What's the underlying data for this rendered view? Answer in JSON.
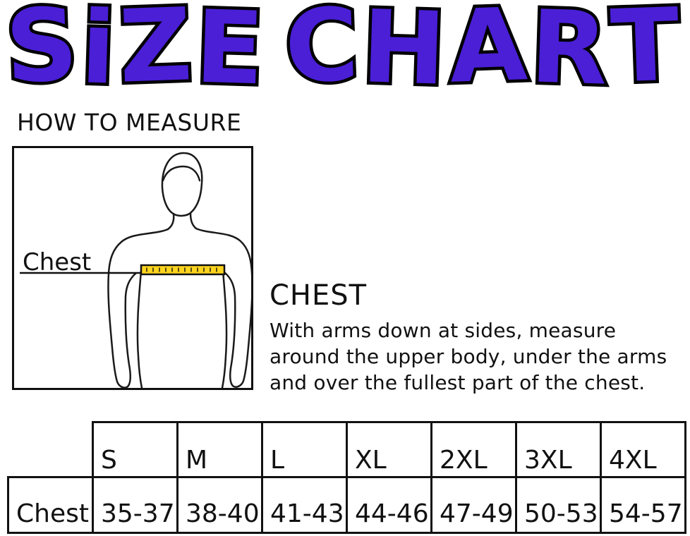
{
  "title": {
    "text": "SiZE CHART",
    "color": "#4A1FD6",
    "outline_color": "#000000"
  },
  "how_to_measure": {
    "heading": "HOW TO MEASURE"
  },
  "figure": {
    "label": "Chest",
    "tape_color": "#FFD41E"
  },
  "instructions": {
    "heading": "CHEST",
    "lines": [
      "With arms down at sides, measure",
      "around the upper body, under the arms",
      "and over the fullest part of the chest."
    ]
  },
  "size_table": {
    "row_label": "Chest",
    "columns": [
      "S",
      "M",
      "L",
      "XL",
      "2XL",
      "3XL",
      "4XL"
    ],
    "values": [
      "35-37",
      "38-40",
      "41-43",
      "44-46",
      "47-49",
      "50-53",
      "54-57"
    ]
  }
}
